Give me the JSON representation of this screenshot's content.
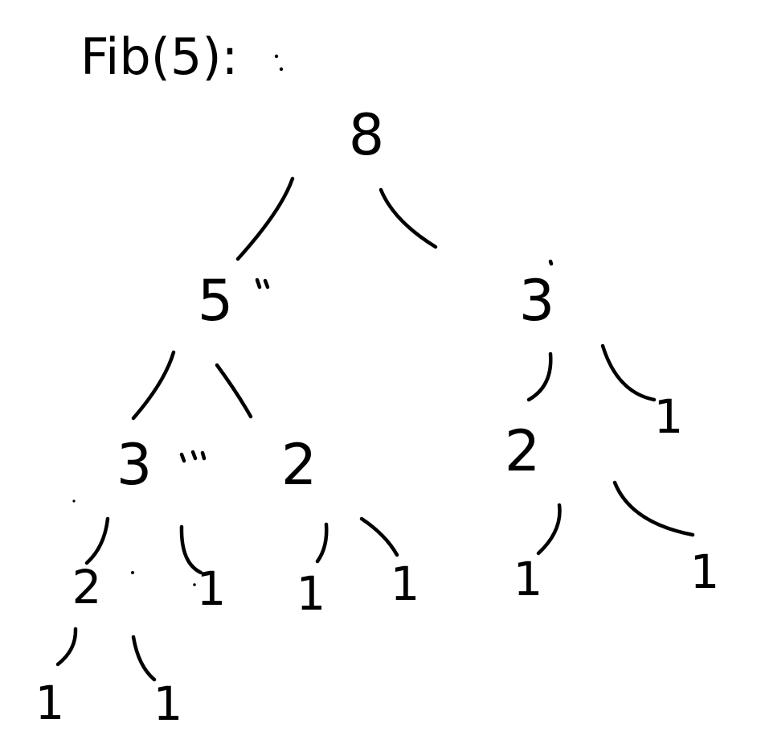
{
  "title": "Fib(5):",
  "colors": {
    "ink": "#000000",
    "paper": "#ffffff"
  },
  "tree": {
    "root": {
      "value": "8",
      "left": {
        "value": "5",
        "left": {
          "value": "3",
          "left": {
            "value": "2",
            "left": {
              "value": "1"
            },
            "right": {
              "value": "1"
            }
          },
          "right": {
            "value": "1"
          }
        },
        "right": {
          "value": "2",
          "left": {
            "value": "1"
          },
          "right": {
            "value": "1"
          }
        }
      },
      "right": {
        "value": "3",
        "left": {
          "value": "2",
          "left": {
            "value": "1"
          },
          "right": {
            "value": "1"
          }
        },
        "right": {
          "value": "1"
        }
      }
    }
  }
}
